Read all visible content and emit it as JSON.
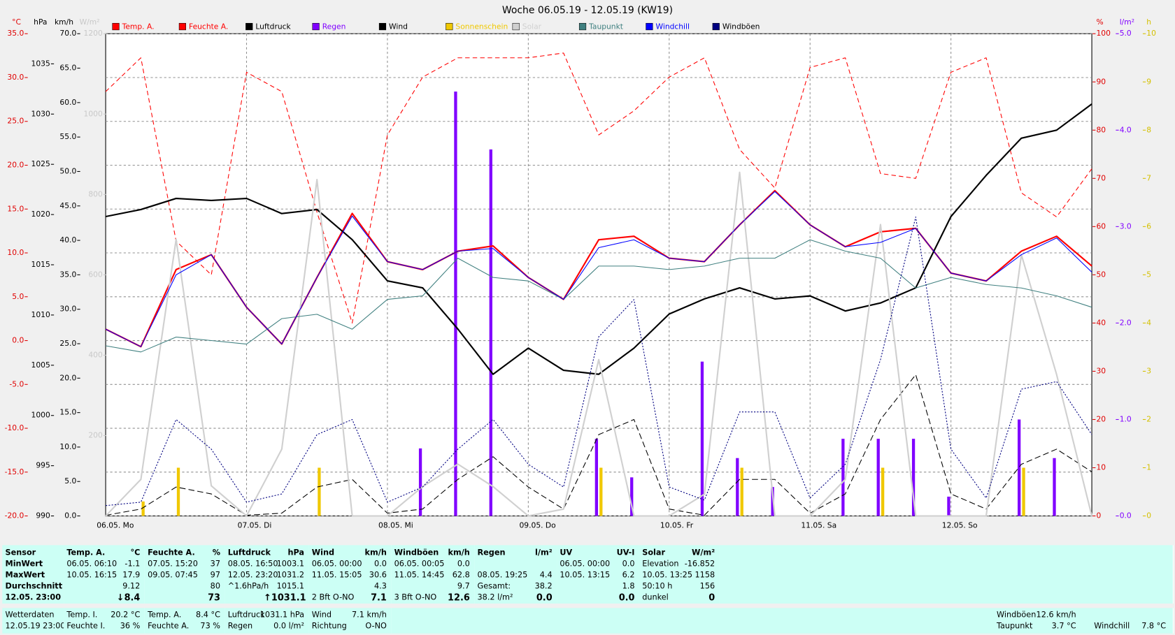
{
  "chart_data": {
    "type": "line",
    "title": "Woche 06.05.19 - 12.05.19 (KW19)",
    "categories": [
      "06.05. Mo",
      null,
      null,
      null,
      "07.05. Di",
      null,
      null,
      null,
      "08.05. Mi",
      null,
      null,
      null,
      "09.05. Do",
      null,
      null,
      null,
      "10.05. Fr",
      null,
      null,
      null,
      "11.05. Sa",
      null,
      null,
      null,
      "12.05. So",
      null,
      null,
      null,
      null
    ],
    "axes": [
      {
        "unit": "°C",
        "side": "left",
        "color": "#e00000",
        "grid": true,
        "lim": [
          -20,
          35
        ],
        "ticks": [
          {
            "value": -20,
            "label": "-20.0"
          },
          {
            "value": -15,
            "label": "-15.0"
          },
          {
            "value": -10,
            "label": "-10.0"
          },
          {
            "value": -5,
            "label": "-5.0"
          },
          {
            "value": 0,
            "label": "0.0"
          },
          {
            "value": 5,
            "label": "5.0"
          },
          {
            "value": 10,
            "label": "10.0"
          },
          {
            "value": 15,
            "label": "15.0"
          },
          {
            "value": 20,
            "label": "20.0"
          },
          {
            "value": 25,
            "label": "25.0"
          },
          {
            "value": 30,
            "label": "30.0"
          },
          {
            "value": 35,
            "label": "35.0"
          }
        ]
      },
      {
        "unit": "hPa",
        "side": "left",
        "color": "#000000",
        "lim": [
          990,
          1038
        ],
        "ticks": [
          990,
          995,
          1000,
          1005,
          1010,
          1015,
          1020,
          1025,
          1030,
          1035
        ]
      },
      {
        "unit": "km/h",
        "side": "left",
        "color": "#000000",
        "lim": [
          0,
          70
        ],
        "ticks": [
          {
            "value": 0,
            "label": "0.0"
          },
          {
            "value": 5,
            "label": "5.0"
          },
          {
            "value": 10,
            "label": "10.0"
          },
          {
            "value": 15,
            "label": "15.0"
          },
          {
            "value": 20,
            "label": "20.0"
          },
          {
            "value": 25,
            "label": "25.0"
          },
          {
            "value": 30,
            "label": "30.0"
          },
          {
            "value": 35,
            "label": "35.0"
          },
          {
            "value": 40,
            "label": "40.0"
          },
          {
            "value": 45,
            "label": "45.0"
          },
          {
            "value": 50,
            "label": "50.0"
          },
          {
            "value": 55,
            "label": "55.0"
          },
          {
            "value": 60,
            "label": "60.0"
          },
          {
            "value": 65,
            "label": "65.0"
          },
          {
            "value": 70,
            "label": "70.0"
          }
        ]
      },
      {
        "unit": "W/m²",
        "side": "left",
        "color": "#c8c8c8",
        "lim": [
          0,
          1200
        ],
        "ticks": [
          200,
          400,
          600,
          800,
          1000,
          1200
        ]
      },
      {
        "unit": "%",
        "side": "right",
        "color": "#e00000",
        "lim": [
          0,
          100
        ],
        "ticks": [
          0,
          10,
          20,
          30,
          40,
          50,
          60,
          70,
          80,
          90,
          100
        ]
      },
      {
        "unit": "l/m²",
        "side": "right",
        "color": "#8000ff",
        "lim": [
          0,
          5
        ],
        "ticks": [
          {
            "value": 0,
            "label": "0.0"
          },
          {
            "value": 1,
            "label": "1.0"
          },
          {
            "value": 2,
            "label": "2.0"
          },
          {
            "value": 3,
            "label": "3.0"
          },
          {
            "value": 4,
            "label": "4.0"
          },
          {
            "value": 5,
            "label": "5.0"
          }
        ]
      },
      {
        "unit": "h",
        "side": "right",
        "color": "#d4c000",
        "lim": [
          0,
          10
        ],
        "ticks": [
          0,
          1,
          2,
          3,
          4,
          5,
          6,
          7,
          8,
          9,
          10
        ]
      }
    ],
    "series": [
      {
        "name": "Temp. A.",
        "color": "#ff0000",
        "axis": "°C",
        "line_width": 2,
        "values": [
          1.3,
          -0.7,
          8.1,
          9.8,
          3.8,
          -0.4,
          7.2,
          14.5,
          9,
          8.1,
          10.2,
          10.8,
          7.2,
          4.7,
          11.5,
          11.9,
          9.4,
          9,
          13.2,
          17.1,
          13.2,
          10.7,
          12.4,
          12.8,
          7.7,
          6.8,
          10.2,
          11.9,
          8.5
        ]
      },
      {
        "name": "Feuchte A.",
        "color": "#ff0000",
        "axis": "%",
        "dash": "6,4",
        "line_width": 1,
        "values": [
          88,
          95,
          57,
          50,
          92,
          88,
          63,
          40,
          79,
          91,
          95,
          95,
          95,
          96,
          79,
          84,
          91,
          95,
          76,
          68,
          93,
          95,
          71,
          70,
          92,
          95,
          67,
          62,
          72
        ]
      },
      {
        "name": "Luftdruck",
        "color": "#000000",
        "axis": "hPa",
        "line_width": 2,
        "values": [
          1019.8,
          1020.5,
          1021.6,
          1021.4,
          1021.6,
          1020.1,
          1020.5,
          1017.5,
          1013.4,
          1012.7,
          1008.6,
          1004.1,
          1006.7,
          1004.5,
          1004.1,
          1006.7,
          1010.1,
          1011.6,
          1012.7,
          1011.6,
          1011.9,
          1010.4,
          1011.2,
          1012.7,
          1019.8,
          1023.9,
          1027.6,
          1028.4,
          1031.0
        ]
      },
      {
        "name": "Regen",
        "color": "#8000ff",
        "axis": "l/m²",
        "type": "bar",
        "values": [
          0,
          0,
          0,
          0,
          0,
          0,
          0,
          0,
          0,
          0.7,
          4.4,
          3.8,
          0,
          0,
          0.8,
          0.4,
          0,
          1.6,
          0.6,
          0.3,
          0,
          0.8,
          0.8,
          0.8,
          0.2,
          0,
          1.0,
          0.6,
          0
        ]
      },
      {
        "name": "Wind",
        "color": "#000000",
        "axis": "km/h",
        "dash": "8,4",
        "line_width": 1,
        "values": [
          0.1,
          1,
          4.2,
          3.2,
          0.1,
          0.4,
          4.2,
          5.3,
          0.4,
          1,
          5.3,
          8.6,
          4.2,
          1,
          11.8,
          14,
          1,
          0.1,
          5.3,
          5.3,
          0.4,
          3.2,
          14,
          20.5,
          3.2,
          1,
          7.5,
          9.7,
          6.4
        ]
      },
      {
        "name": "Sonnenschein",
        "color": "#f0c800",
        "axis": "h",
        "type": "bar",
        "values": [
          0,
          0.3,
          1.0,
          0,
          0,
          0,
          1.0,
          0,
          0,
          0,
          0,
          0,
          0,
          0,
          1.0,
          0,
          0,
          0,
          1.0,
          0,
          0,
          0,
          1.0,
          0,
          0,
          0,
          1.0,
          0,
          0
        ]
      },
      {
        "name": "Solar",
        "color": "#d0d0d0",
        "axis": "W/m²",
        "line_width": 2,
        "values": [
          0,
          91,
          688,
          75,
          0,
          166,
          837,
          0,
          0,
          73,
          129,
          73,
          0,
          17,
          389,
          0,
          0,
          54,
          855,
          0,
          0,
          91,
          725,
          0,
          0,
          0,
          650,
          352,
          0
        ]
      },
      {
        "name": "Taupunkt",
        "color": "#408080",
        "axis": "°C",
        "line_width": 1,
        "values": [
          -0.6,
          -1.3,
          0.4,
          0,
          -0.4,
          2.5,
          3,
          1.3,
          4.7,
          5.1,
          9.4,
          7.2,
          6.8,
          4.7,
          8.5,
          8.5,
          8.1,
          8.5,
          9.4,
          9.4,
          11.5,
          10.2,
          9.4,
          6,
          7.2,
          6.4,
          6,
          5.1,
          3.8
        ]
      },
      {
        "name": "Windchill",
        "color": "#0000ff",
        "axis": "°C",
        "line_width": 1,
        "values": [
          1.3,
          -0.7,
          7.5,
          9.8,
          3.8,
          -0.4,
          7.2,
          14.2,
          9,
          8.1,
          10.2,
          10.5,
          7.2,
          4.7,
          10.6,
          11.5,
          9.4,
          9,
          13.2,
          17,
          13.2,
          10.7,
          11.2,
          12.8,
          7.7,
          6.8,
          9.8,
          11.7,
          7.8
        ]
      },
      {
        "name": "Windböen",
        "color": "#000080",
        "axis": "km/h",
        "dash": "2,2",
        "line_width": 1,
        "values": [
          1.5,
          2,
          14,
          9.7,
          2,
          3.2,
          11.8,
          14,
          2,
          4.2,
          9.7,
          14,
          7.5,
          4.2,
          26,
          31.4,
          4.2,
          2.3,
          15.1,
          15.1,
          2.6,
          7.5,
          22.7,
          43.4,
          9.7,
          2.6,
          18.4,
          19.5,
          11.8
        ]
      }
    ]
  },
  "summary": {
    "sensor": {
      "title": "Sensor",
      "rows": [
        "MinWert",
        "MaxWert",
        "Durchschnitt",
        "12.05. 23:00"
      ]
    },
    "blocks": [
      {
        "title": "Temp. A.",
        "unit": "°C",
        "rows": [
          [
            "06.05. 06:10",
            "-1.1"
          ],
          [
            "10.05. 16:15",
            "17.9"
          ],
          [
            "9.12"
          ],
          [
            "↓8.4"
          ]
        ]
      },
      {
        "title": "Feuchte A.",
        "unit": "%",
        "rows": [
          [
            "07.05. 15:20",
            "37"
          ],
          [
            "09.05. 07:45",
            "97"
          ],
          [
            "80"
          ],
          [
            "73"
          ]
        ]
      },
      {
        "title": "Luftdruck",
        "unit": "hPa",
        "rows": [
          [
            "08.05. 16:50",
            "1003.1"
          ],
          [
            "12.05. 23:20",
            "1031.2"
          ],
          [
            "^1.6hPa/h",
            "1015.1"
          ],
          [
            "↑1031.1"
          ]
        ]
      },
      {
        "title": "Wind",
        "unit": "km/h",
        "rows": [
          [
            "06.05. 00:00",
            "0.0"
          ],
          [
            "11.05. 15:05",
            "30.6"
          ],
          [
            "4.3"
          ],
          [
            "2 Bft O-NO",
            "7.1"
          ]
        ]
      },
      {
        "title": "Windböen",
        "unit": "km/h",
        "rows": [
          [
            "06.05. 00:05",
            "0.0"
          ],
          [
            "11.05. 14:45",
            "62.8"
          ],
          [
            "9.7"
          ],
          [
            "3 Bft O-NO",
            "12.6"
          ]
        ]
      },
      {
        "title": "Regen",
        "unit": "l/m²",
        "rows": [
          null,
          [
            "08.05. 19:25",
            "4.4"
          ],
          [
            "Gesamt:",
            "38.2"
          ],
          [
            "38.2 l/m²",
            "0.0"
          ]
        ]
      },
      {
        "title": "UV",
        "unit": "UV-I",
        "rows": [
          [
            "06.05. 00:00",
            "0.0"
          ],
          [
            "10.05. 13:15",
            "6.2"
          ],
          [
            "1.8"
          ],
          [
            "0.0"
          ]
        ]
      },
      {
        "title": "Solar",
        "unit": "W/m²",
        "rows": [
          [
            "Elevation",
            "-16.852"
          ],
          [
            "10.05. 13:25",
            "1158"
          ],
          [
            "50:10 h",
            "156"
          ],
          [
            "dunkel",
            "0"
          ]
        ]
      }
    ]
  },
  "current": {
    "label": "Wetterdaten",
    "time": "12.05.19 23:00",
    "blocks": [
      [
        [
          "Temp. I.",
          "20.2 °C"
        ],
        [
          "Feuchte I.",
          "36 %"
        ]
      ],
      [
        [
          "Temp. A.",
          "8.4 °C"
        ],
        [
          "Feuchte A.",
          "73 %"
        ]
      ],
      [
        [
          "Luftdruck",
          "1031.1 hPa"
        ],
        [
          "Regen",
          "0.0 l/m²"
        ]
      ],
      [
        [
          "Wind",
          "7.1 km/h"
        ],
        [
          "Richtung",
          "O-NO"
        ]
      ]
    ],
    "right": [
      [
        "Windböen",
        "12.6 km/h"
      ],
      [
        "Taupunkt",
        "3.7 °C"
      ],
      [
        "Windchill",
        "7.8 °C"
      ]
    ]
  }
}
